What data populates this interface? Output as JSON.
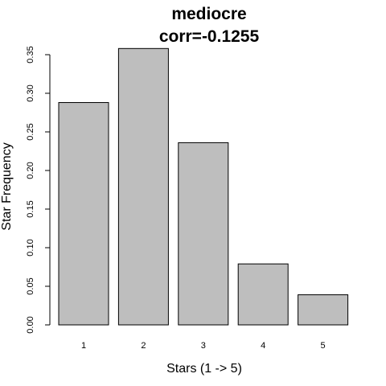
{
  "chart_data": {
    "type": "bar",
    "title": "mediocre",
    "subtitle": "corr=-0.1255",
    "xlabel": "Stars (1 -> 5)",
    "ylabel": "Star Frequency",
    "categories": [
      "1",
      "2",
      "3",
      "4",
      "5"
    ],
    "values": [
      0.288,
      0.358,
      0.236,
      0.079,
      0.039
    ],
    "ylim": [
      0,
      0.35
    ],
    "yticks": [
      "0.00",
      "0.05",
      "0.10",
      "0.15",
      "0.20",
      "0.25",
      "0.30",
      "0.35"
    ],
    "grid": false,
    "legend": "none",
    "colors": {
      "bar_fill": "#bebebe",
      "bar_stroke": "#000000"
    }
  }
}
